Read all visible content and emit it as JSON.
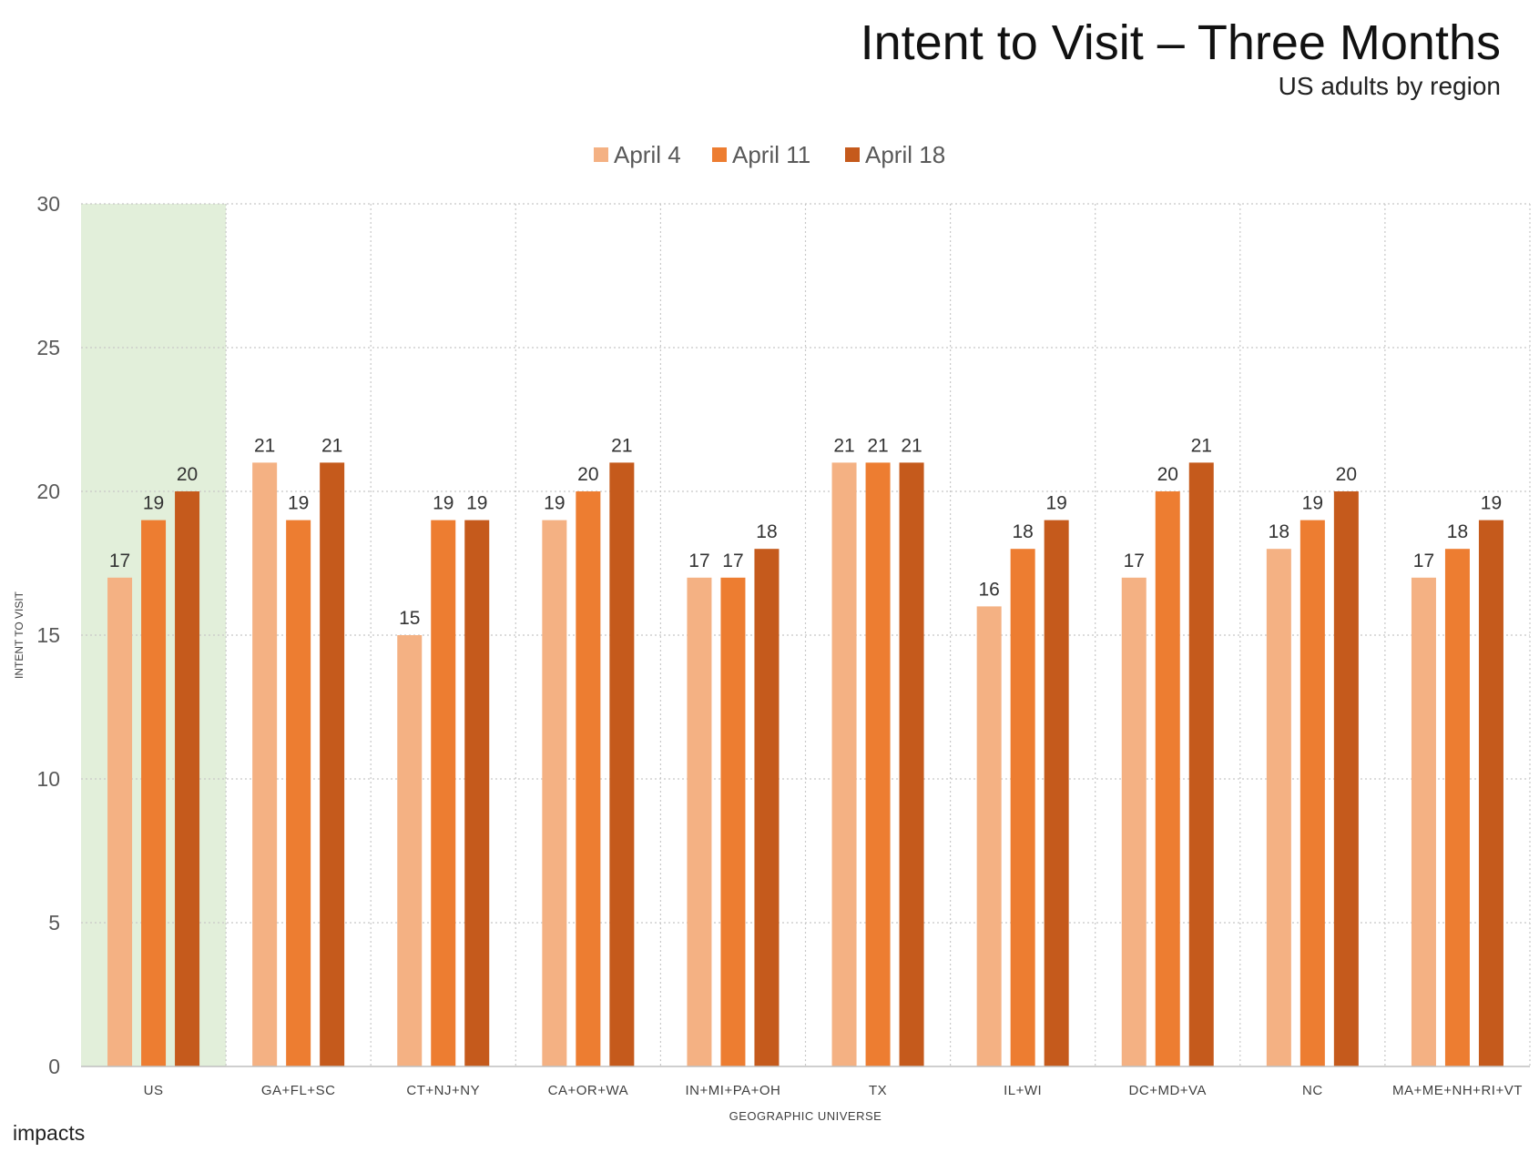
{
  "title": "Intent to Visit – Three Months",
  "subtitle": "US adults by region",
  "brand": "impacts",
  "chart_data": {
    "type": "bar",
    "title": "Intent to Visit – Three Months",
    "subtitle": "US adults by region",
    "xlabel": "GEOGRAPHIC UNIVERSE",
    "ylabel": "INTENT TO VISIT",
    "ylim": [
      0,
      30
    ],
    "yticks": [
      0,
      5,
      10,
      15,
      20,
      25,
      30
    ],
    "grid": true,
    "legend_position": "top",
    "highlight_category": "US",
    "highlight_color": "#e2efda",
    "categories": [
      "US",
      "GA+FL+SC",
      "CT+NJ+NY",
      "CA+OR+WA",
      "IN+MI+PA+OH",
      "TX",
      "IL+WI",
      "DC+MD+VA",
      "NC",
      "MA+ME+NH+RI+VT"
    ],
    "series": [
      {
        "name": "April 4",
        "color": "#f4b183",
        "values": [
          17,
          21,
          15,
          19,
          17,
          21,
          16,
          17,
          18,
          17
        ]
      },
      {
        "name": "April 11",
        "color": "#ed7d31",
        "values": [
          19,
          19,
          19,
          20,
          17,
          21,
          18,
          20,
          19,
          18
        ]
      },
      {
        "name": "April 18",
        "color": "#c55a1c",
        "values": [
          20,
          21,
          19,
          21,
          18,
          21,
          19,
          21,
          20,
          19
        ]
      }
    ]
  }
}
